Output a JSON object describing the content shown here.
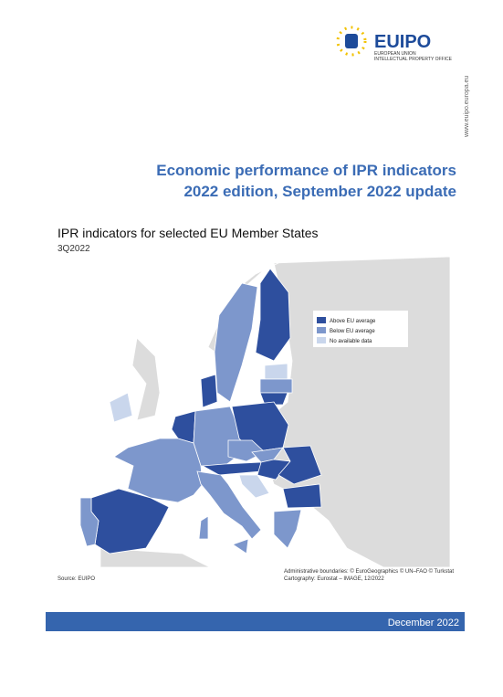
{
  "header": {
    "logo_name": "EUIPO",
    "logo_line1": "EUROPEAN UNION",
    "logo_line2": "INTELLECTUAL PROPERTY OFFICE",
    "website": "www.euipo.europa.eu"
  },
  "title": {
    "line1": "Economic performance of IPR indicators",
    "line2": "2022 edition, September 2022 update"
  },
  "map": {
    "title": "IPR indicators for selected EU Member States",
    "subtitle": "3Q2022",
    "legend": [
      {
        "label": "Above EU average"
      },
      {
        "label": "Below EU average"
      },
      {
        "label": "No available data"
      }
    ],
    "source": "Source: EUIPO",
    "credit1": "Administrative boundaries: © EuroGeographics © UN–FAO © Turkstat",
    "credit2": "Cartography: Eurostat – IMAGE, 12/2022"
  },
  "footer": {
    "date": "December 2022"
  }
}
